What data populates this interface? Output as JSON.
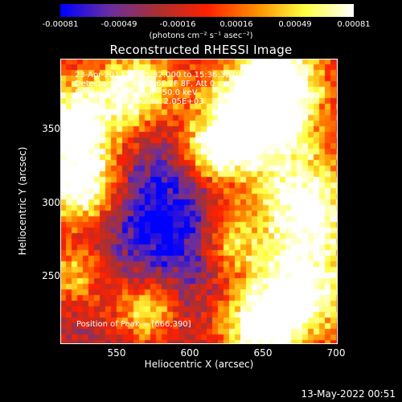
{
  "colorbar": {
    "ticks": [
      "-0.00081",
      "-0.00049",
      "-0.00016",
      "0.00016",
      "0.00049",
      "0.00081"
    ],
    "units": "(photons cm⁻² s⁻¹ asec⁻²)"
  },
  "title": "Reconstructed RHESSI Image",
  "annotations": {
    "time": "23-Apr-2013 15:35:32.000 to 15:36:32.000",
    "detectors": "Detectors: 3F 4F 5F 6F 7F 8F, Att 0",
    "energy": "Energy Range: 25.0 - 50.0 keV",
    "clean": "Clean     Total counts: 2.05E+03",
    "peak": "Position of Peak = [666,390]"
  },
  "axes": {
    "xlabel": "Heliocentric X (arcsec)",
    "ylabel": "Heliocentric Y (arcsec)",
    "xticks": [
      "550",
      "600",
      "650",
      "700"
    ],
    "yticks": [
      "350",
      "300",
      "250"
    ]
  },
  "timestamp": "13-May-2022 00:51",
  "chart_data": {
    "type": "heatmap",
    "title": "Reconstructed RHESSI Image",
    "xlabel": "Heliocentric X (arcsec)",
    "ylabel": "Heliocentric Y (arcsec)",
    "xlim": [
      512,
      702
    ],
    "ylim": [
      202,
      398
    ],
    "colorbar_range": [
      -0.00081,
      0.00081
    ],
    "colormap": [
      "#0000ff",
      "#6a2ea0",
      "#aa3030",
      "#ff2000",
      "#ff8c00",
      "#ffff40",
      "#ffffff"
    ],
    "peak": [
      666,
      390
    ]
  }
}
